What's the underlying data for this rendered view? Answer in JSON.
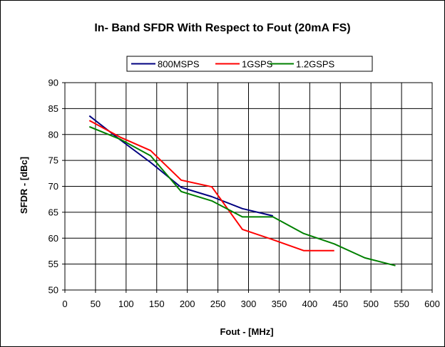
{
  "chart_data": {
    "type": "line",
    "title": "In- Band SFDR With Respect to Fout (20mA FS)",
    "xlabel": "Fout - [MHz]",
    "ylabel": "SFDR - [dBc]",
    "xlim": [
      0,
      600
    ],
    "ylim": [
      50,
      90
    ],
    "xticks": [
      0,
      50,
      100,
      150,
      200,
      250,
      300,
      350,
      400,
      450,
      500,
      550,
      600
    ],
    "yticks": [
      50,
      55,
      60,
      65,
      70,
      75,
      80,
      85,
      90
    ],
    "grid": true,
    "legend_position": "top",
    "series": [
      {
        "name": "800MSPS",
        "color": "#000080",
        "x": [
          40,
          90,
          140,
          190,
          240,
          290,
          340
        ],
        "y": [
          83.6,
          79.0,
          74.6,
          69.8,
          68.0,
          65.7,
          64.3
        ]
      },
      {
        "name": "1GSPS",
        "color": "#ff0000",
        "x": [
          40,
          90,
          140,
          190,
          240,
          290,
          340,
          390,
          440
        ],
        "y": [
          82.7,
          79.5,
          76.9,
          71.2,
          69.9,
          61.7,
          59.7,
          57.6,
          57.6
        ]
      },
      {
        "name": "1.2GSPS",
        "color": "#008000",
        "x": [
          40,
          90,
          140,
          190,
          240,
          290,
          340,
          390,
          440,
          490,
          540
        ],
        "y": [
          81.5,
          79.1,
          75.9,
          69.0,
          67.2,
          64.1,
          64.1,
          60.9,
          58.9,
          56.2,
          54.7
        ]
      }
    ]
  }
}
